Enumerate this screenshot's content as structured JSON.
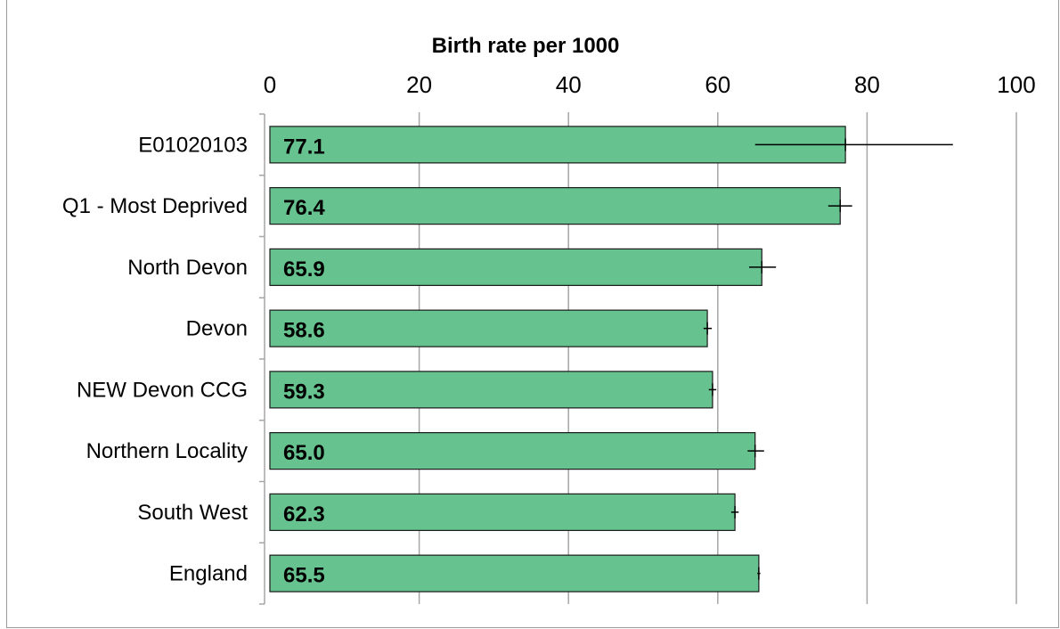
{
  "chart_data": {
    "type": "bar",
    "orientation": "horizontal",
    "title": "Birth rate per 1000",
    "categories": [
      "E01020103",
      "Q1 - Most Deprived",
      "North Devon",
      "Devon",
      "NEW Devon CCG",
      "Northern Locality",
      "South West",
      "England"
    ],
    "values": [
      77.1,
      76.4,
      65.9,
      58.6,
      59.3,
      65.0,
      62.3,
      65.5
    ],
    "value_labels": [
      "77.1",
      "76.4",
      "65.9",
      "58.6",
      "59.3",
      "65.0",
      "62.3",
      "65.5"
    ],
    "error_low": [
      65.0,
      74.8,
      64.2,
      58.1,
      58.8,
      64.0,
      61.8,
      65.3
    ],
    "error_high": [
      91.5,
      78.0,
      67.8,
      59.2,
      59.8,
      66.2,
      62.8,
      65.7
    ],
    "xlim": [
      0,
      100
    ],
    "xticks": [
      0,
      20,
      40,
      60,
      80,
      100
    ],
    "axis_position": "top",
    "grid": true,
    "bar_color": "#66c28e",
    "bar_edge_color": "#1a1a1a",
    "grid_color": "#a6a6a6"
  }
}
